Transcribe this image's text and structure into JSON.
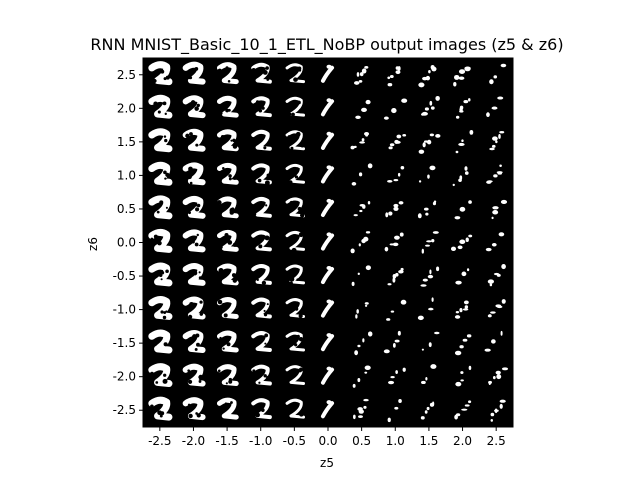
{
  "chart_data": {
    "type": "heatmap",
    "title": "RNN MNIST_Basic_10_1_ETL_NoBP output images (z5 & z6)",
    "xlabel": "z5",
    "ylabel": "z6",
    "grid": false,
    "xlim": [
      -2.75,
      2.75
    ],
    "ylim": [
      -2.75,
      2.75
    ],
    "xticks": [
      -2.5,
      -2.0,
      -1.5,
      -1.0,
      -0.5,
      0.0,
      0.5,
      1.0,
      1.5,
      2.0,
      2.5
    ],
    "xtick_labels": [
      "-2.5",
      "-2.0",
      "-1.5",
      "-1.0",
      "-0.5",
      "0.0",
      "0.5",
      "1.0",
      "1.5",
      "2.0",
      "2.5"
    ],
    "yticks": [
      2.5,
      2.0,
      1.5,
      1.0,
      0.5,
      0.0,
      -0.5,
      -1.0,
      -1.5,
      -2.0,
      -2.5
    ],
    "ytick_labels": [
      "2.5",
      "2.0",
      "1.5",
      "1.0",
      "0.5",
      "0.0",
      "-0.5",
      "-1.0",
      "-1.5",
      "-2.0",
      "-2.5"
    ],
    "grid_size": [
      11,
      11
    ],
    "cell_content": "generated digit images, white on black",
    "background_color": "#000000",
    "foreground_color": "#ffffff"
  }
}
